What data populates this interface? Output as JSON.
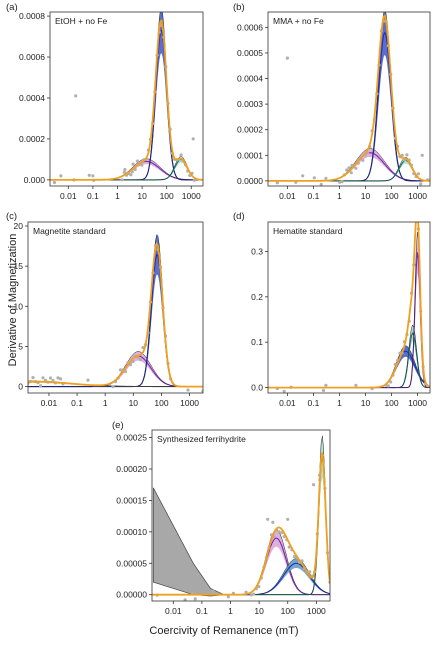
{
  "figure": {
    "ylabel": "Derivative of Magnetization",
    "xlabel": "Coercivity of Remanence (mT)"
  },
  "colors": {
    "data_points": "#b0b0b0",
    "total_fit": "#f0a020",
    "soft_component": "#7a28b8",
    "soft_fill": "#d8a2d8",
    "main_component": "#1f2fb8",
    "main_fill": "#3d55c8",
    "hard_component": "#127a6e",
    "hard_fill": "#a8d8c8",
    "low_tail_fill": "#a8a8a8",
    "blue_band": "#5f96c0"
  },
  "chart_data": [
    {
      "panel": "(a)",
      "type": "line",
      "title": "EtOH + no Fe",
      "x_scale": "log",
      "x_ticks": [
        "0.01",
        "0.1",
        "1",
        "10",
        "100",
        "1000"
      ],
      "y_ticks": [
        "0.000",
        "0.0002",
        "0.0004",
        "0.0006",
        "0.0008"
      ],
      "ylim": [
        -3e-05,
        0.00082
      ],
      "series": [
        {
          "kind": "component",
          "role": "soft",
          "peak_x": 15,
          "peak_y": 9e-05,
          "log_sigma": 0.55
        },
        {
          "kind": "component",
          "role": "main",
          "peak_x": 60,
          "peak_y": 0.00073,
          "log_sigma": 0.22
        },
        {
          "kind": "component",
          "role": "hard",
          "peak_x": 380,
          "peak_y": 0.0001,
          "log_sigma": 0.25
        },
        {
          "kind": "total"
        }
      ],
      "outliers": [
        [
          0.02,
          0.00041
        ],
        [
          0.1,
          2e-05
        ],
        [
          2,
          5e-05
        ],
        [
          4,
          4e-05
        ],
        [
          1200,
          0.0002
        ]
      ],
      "grid": false
    },
    {
      "panel": "(b)",
      "type": "line",
      "title": "MMA + no Fe",
      "x_scale": "log",
      "x_ticks": [
        "0.01",
        "0.1",
        "1",
        "10",
        "100",
        "1000"
      ],
      "y_ticks": [
        "0.0000",
        "0.0001",
        "0.0002",
        "0.0003",
        "0.0004",
        "0.0005",
        "0.0006"
      ],
      "ylim": [
        -2e-05,
        0.00066
      ],
      "series": [
        {
          "kind": "component",
          "role": "soft",
          "peak_x": 15,
          "peak_y": 0.00011,
          "log_sigma": 0.55
        },
        {
          "kind": "component",
          "role": "main",
          "peak_x": 55,
          "peak_y": 0.00058,
          "log_sigma": 0.24
        },
        {
          "kind": "component",
          "role": "hard",
          "peak_x": 350,
          "peak_y": 8e-05,
          "log_sigma": 0.25
        },
        {
          "kind": "total"
        }
      ],
      "outliers": [
        [
          0.01,
          0.00048
        ],
        [
          0.3,
          1e-05
        ],
        [
          3,
          6e-05
        ],
        [
          1500,
          0.0001
        ]
      ],
      "grid": false
    },
    {
      "panel": "(c)",
      "type": "line",
      "title": "Magnetite standard",
      "x_scale": "log",
      "x_ticks": [
        "0.01",
        "0.1",
        "1",
        "10",
        "100",
        "1000"
      ],
      "y_ticks": [
        "0",
        "5",
        "10",
        "15",
        "20"
      ],
      "ylim": [
        -0.8,
        20.5
      ],
      "series": [
        {
          "kind": "component",
          "role": "soft",
          "peak_x": 15,
          "peak_y": 3.8,
          "log_sigma": 0.45
        },
        {
          "kind": "component",
          "role": "main",
          "peak_x": 70,
          "peak_y": 16.5,
          "log_sigma": 0.2
        },
        {
          "kind": "component",
          "role": "low_tail",
          "peak_x": 0.003,
          "peak_y": 0.6,
          "log_sigma": 1.3
        },
        {
          "kind": "total"
        }
      ],
      "outliers": [],
      "grid": false
    },
    {
      "panel": "(d)",
      "type": "line",
      "title": "Hematite standard",
      "x_scale": "log",
      "x_ticks": [
        "0.01",
        "0.1",
        "1",
        "10",
        "100",
        "1000"
      ],
      "y_ticks": [
        "0.0",
        "0.1",
        "0.2",
        "0.3"
      ],
      "ylim": [
        -0.012,
        0.365
      ],
      "series": [
        {
          "kind": "component",
          "role": "main",
          "peak_x": 350,
          "peak_y": 0.08,
          "log_sigma": 0.35
        },
        {
          "kind": "component",
          "role": "hard",
          "peak_x": 650,
          "peak_y": 0.12,
          "log_sigma": 0.15
        },
        {
          "kind": "component",
          "role": "soft",
          "peak_x": 1000,
          "peak_y": 0.3,
          "log_sigma": 0.1
        },
        {
          "kind": "total"
        }
      ],
      "outliers": [],
      "grid": false
    },
    {
      "panel": "(e)",
      "type": "line",
      "title": "Synthesized ferrihydrite",
      "x_scale": "log",
      "x_ticks": [
        "0.01",
        "0.1",
        "1",
        "10",
        "100",
        "1000"
      ],
      "y_ticks": [
        "0.00000",
        "0.00005",
        "0.00010",
        "0.00015",
        "0.00020",
        "0.00025"
      ],
      "ylim": [
        -1e-05,
        0.000262
      ],
      "series": [
        {
          "kind": "component",
          "role": "soft",
          "peak_x": 40,
          "peak_y": 9e-05,
          "log_sigma": 0.35
        },
        {
          "kind": "component",
          "role": "blue_band",
          "peak_x": 200,
          "peak_y": 5e-05,
          "log_sigma": 0.45
        },
        {
          "kind": "component",
          "role": "hard",
          "peak_x": 1600,
          "peak_y": 0.00022,
          "log_sigma": 0.12
        },
        {
          "kind": "low_tail_polygon",
          "points": [
            [
              0.002,
              0.00017
            ],
            [
              0.01,
              0.00011
            ],
            [
              0.05,
              5e-05
            ],
            [
              0.2,
              1e-05
            ],
            [
              0.6,
              0.0
            ],
            [
              0.2,
              -2e-06
            ],
            [
              0.05,
              0.0
            ],
            [
              0.01,
              1e-05
            ],
            [
              0.002,
              2e-05
            ]
          ]
        },
        {
          "kind": "total"
        }
      ],
      "outliers": [
        [
          20,
          0.00012
        ],
        [
          30,
          0.000115
        ],
        [
          100,
          0.00012
        ],
        [
          800,
          0.000175
        ],
        [
          1300,
          0.00019
        ]
      ],
      "grid": false
    }
  ]
}
